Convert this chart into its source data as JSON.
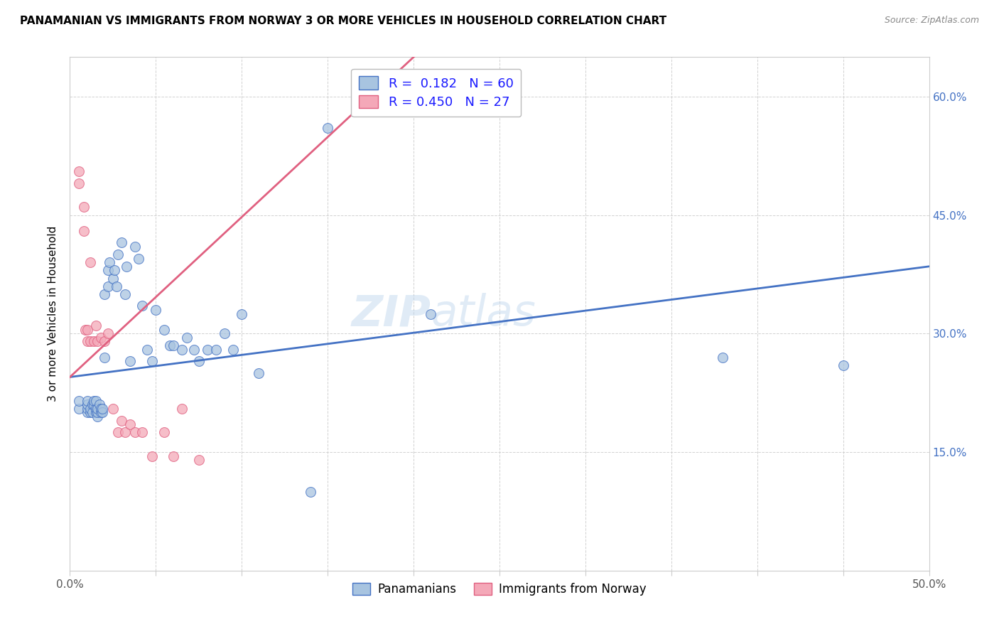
{
  "title": "PANAMANIAN VS IMMIGRANTS FROM NORWAY 3 OR MORE VEHICLES IN HOUSEHOLD CORRELATION CHART",
  "source": "Source: ZipAtlas.com",
  "ylabel": "3 or more Vehicles in Household",
  "xmin": 0.0,
  "xmax": 0.5,
  "ymin": 0.0,
  "ymax": 0.65,
  "x_ticks": [
    0.0,
    0.05,
    0.1,
    0.15,
    0.2,
    0.25,
    0.3,
    0.35,
    0.4,
    0.45,
    0.5
  ],
  "y_ticks": [
    0.0,
    0.15,
    0.3,
    0.45,
    0.6
  ],
  "y_tick_labels": [
    "",
    "15.0%",
    "30.0%",
    "45.0%",
    "60.0%"
  ],
  "legend_label1": "Panamanians",
  "legend_label2": "Immigrants from Norway",
  "R1": 0.182,
  "N1": 60,
  "R2": 0.45,
  "N2": 27,
  "color1": "#a8c4e0",
  "color2": "#f4a8b8",
  "line_color1": "#4472c4",
  "line_color2": "#e06080",
  "watermark": "ZIPatlas",
  "blue_line_x0": 0.0,
  "blue_line_y0": 0.245,
  "blue_line_x1": 0.5,
  "blue_line_y1": 0.385,
  "pink_line_x0": 0.0,
  "pink_line_y0": 0.245,
  "pink_line_x1": 0.2,
  "pink_line_y1": 0.65,
  "blue_scatter_x": [
    0.005,
    0.005,
    0.01,
    0.01,
    0.01,
    0.01,
    0.012,
    0.012,
    0.013,
    0.013,
    0.014,
    0.014,
    0.015,
    0.015,
    0.015,
    0.016,
    0.016,
    0.016,
    0.017,
    0.018,
    0.018,
    0.019,
    0.019,
    0.02,
    0.02,
    0.022,
    0.022,
    0.023,
    0.025,
    0.026,
    0.027,
    0.028,
    0.03,
    0.032,
    0.033,
    0.035,
    0.038,
    0.04,
    0.042,
    0.045,
    0.048,
    0.05,
    0.055,
    0.058,
    0.06,
    0.065,
    0.068,
    0.072,
    0.075,
    0.08,
    0.085,
    0.09,
    0.095,
    0.1,
    0.11,
    0.14,
    0.15,
    0.21,
    0.38,
    0.45
  ],
  "blue_scatter_y": [
    0.205,
    0.215,
    0.2,
    0.205,
    0.21,
    0.215,
    0.2,
    0.205,
    0.2,
    0.21,
    0.21,
    0.215,
    0.2,
    0.205,
    0.215,
    0.195,
    0.2,
    0.205,
    0.21,
    0.2,
    0.205,
    0.2,
    0.205,
    0.35,
    0.27,
    0.38,
    0.36,
    0.39,
    0.37,
    0.38,
    0.36,
    0.4,
    0.415,
    0.35,
    0.385,
    0.265,
    0.41,
    0.395,
    0.335,
    0.28,
    0.265,
    0.33,
    0.305,
    0.285,
    0.285,
    0.28,
    0.295,
    0.28,
    0.265,
    0.28,
    0.28,
    0.3,
    0.28,
    0.325,
    0.25,
    0.1,
    0.56,
    0.325,
    0.27,
    0.26
  ],
  "pink_scatter_x": [
    0.005,
    0.005,
    0.008,
    0.008,
    0.009,
    0.01,
    0.01,
    0.012,
    0.012,
    0.014,
    0.015,
    0.016,
    0.018,
    0.02,
    0.022,
    0.025,
    0.028,
    0.03,
    0.032,
    0.035,
    0.038,
    0.042,
    0.048,
    0.055,
    0.06,
    0.065,
    0.075
  ],
  "pink_scatter_y": [
    0.49,
    0.505,
    0.46,
    0.43,
    0.305,
    0.29,
    0.305,
    0.39,
    0.29,
    0.29,
    0.31,
    0.29,
    0.295,
    0.29,
    0.3,
    0.205,
    0.175,
    0.19,
    0.175,
    0.185,
    0.175,
    0.175,
    0.145,
    0.175,
    0.145,
    0.205,
    0.14
  ]
}
